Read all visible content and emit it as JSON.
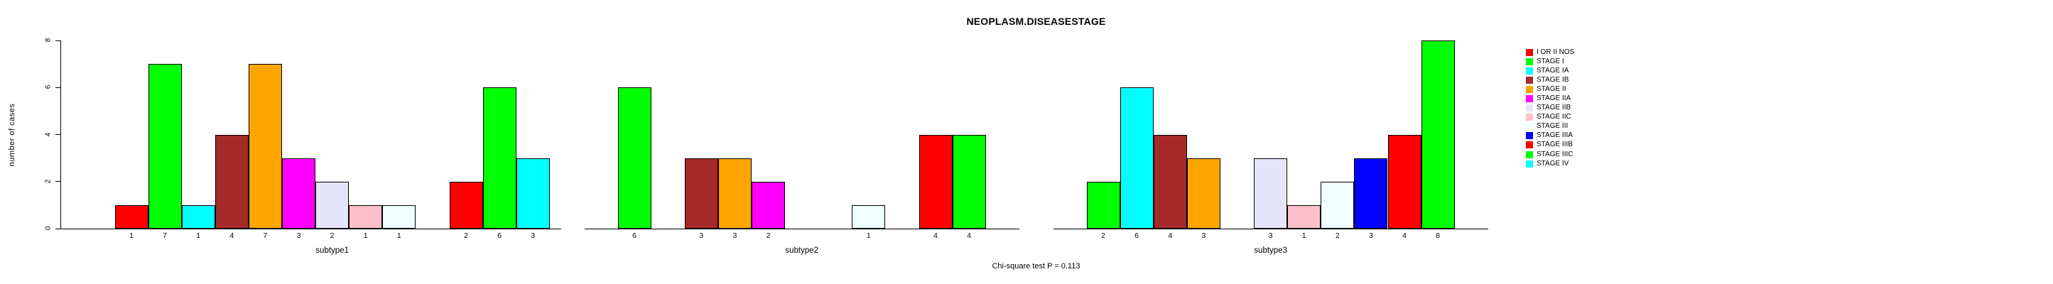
{
  "title": "NEOPLASM.DISEASESTAGE",
  "footer": "Chi-square test P = 0.113",
  "y_axis": {
    "label": "number of cases",
    "ticks": [
      0,
      2,
      4,
      6,
      8
    ]
  },
  "legend": {
    "entries": [
      {
        "label": "I OR II NOS",
        "color": "#FF0000"
      },
      {
        "label": "STAGE I",
        "color": "#00FF00"
      },
      {
        "label": "STAGE IA",
        "color": "#00FFFF"
      },
      {
        "label": "STAGE IB",
        "color": "#A52A2A"
      },
      {
        "label": "STAGE II",
        "color": "#FFA500"
      },
      {
        "label": "STAGE IIA",
        "color": "#FF00FF"
      },
      {
        "label": "STAGE IIB",
        "color": "#E6E6FA"
      },
      {
        "label": "STAGE IIC",
        "color": "#FFC0CB"
      },
      {
        "label": "STAGE III",
        "color": "#F0FFFF"
      },
      {
        "label": "STAGE IIIA",
        "color": "#0000FF"
      },
      {
        "label": "STAGE IIIB",
        "color": "#FF0000"
      },
      {
        "label": "STAGE IIIC",
        "color": "#00FF00"
      },
      {
        "label": "STAGE IV",
        "color": "#00FFFF"
      }
    ]
  },
  "chart_data": {
    "type": "bar",
    "title": "NEOPLASM.DISEASESTAGE",
    "xlabel": "",
    "ylabel": "number of cases",
    "ylim": [
      0,
      8
    ],
    "yticks": [
      0,
      2,
      4,
      6,
      8
    ],
    "grid": false,
    "legend_position": "right",
    "annotation": "Chi-square test P = 0.113",
    "categories": [
      "I OR II NOS",
      "STAGE I",
      "STAGE IA",
      "STAGE IB",
      "STAGE II",
      "STAGE IIA",
      "STAGE IIB",
      "STAGE IIC",
      "STAGE III",
      "STAGE IIIA",
      "STAGE IIIB",
      "STAGE IIIC",
      "STAGE IV"
    ],
    "colors": [
      "#FF0000",
      "#00FF00",
      "#00FFFF",
      "#A52A2A",
      "#FFA500",
      "#FF00FF",
      "#E6E6FA",
      "#FFC0CB",
      "#F0FFFF",
      "#0000FF",
      "#FF0000",
      "#00FF00",
      "#00FFFF"
    ],
    "series": [
      {
        "name": "subtype1",
        "values": [
          1,
          7,
          1,
          4,
          7,
          3,
          2,
          1,
          1,
          0,
          2,
          6,
          3
        ]
      },
      {
        "name": "subtype2",
        "values": [
          0,
          6,
          0,
          3,
          3,
          2,
          0,
          0,
          1,
          0,
          4,
          4,
          0
        ]
      },
      {
        "name": "subtype3",
        "values": [
          0,
          2,
          6,
          4,
          3,
          0,
          3,
          1,
          2,
          3,
          4,
          8,
          0
        ]
      }
    ],
    "bar_value_labels_shown": true
  }
}
